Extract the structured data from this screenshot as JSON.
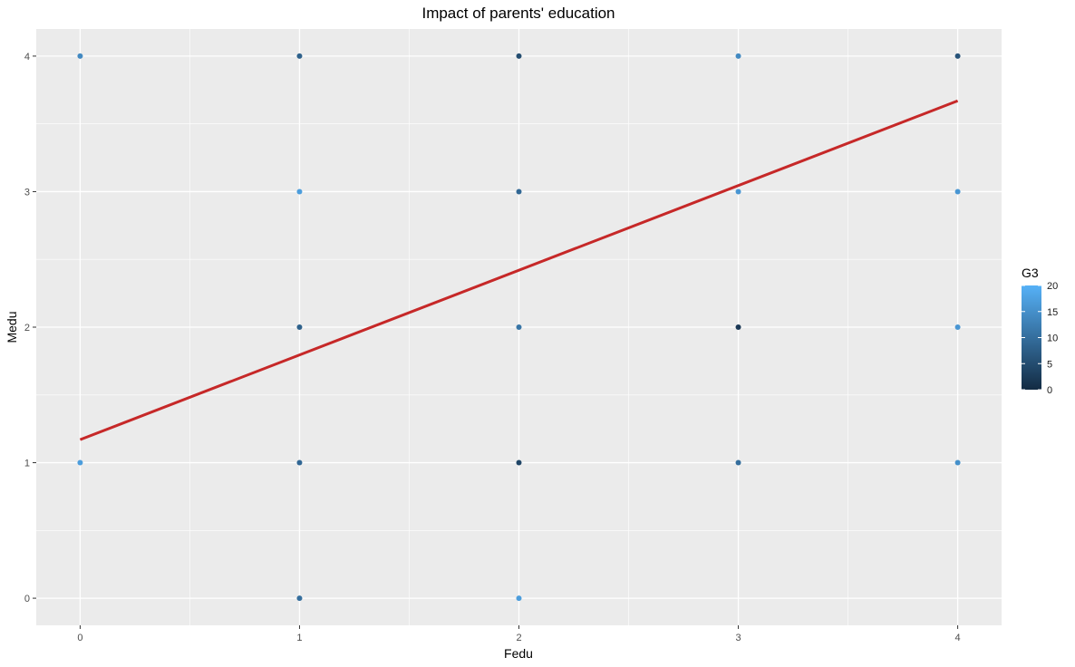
{
  "chart_data": {
    "type": "scatter",
    "title": "Impact of parents' education",
    "xlabel": "Fedu",
    "ylabel": "Medu",
    "xlim": [
      -0.2,
      4.2
    ],
    "ylim": [
      -0.2,
      4.2
    ],
    "x_ticks": [
      "0",
      "1",
      "2",
      "3",
      "4"
    ],
    "y_ticks": [
      "0",
      "1",
      "2",
      "3",
      "4"
    ],
    "grid": true,
    "color_variable": "G3",
    "color_scale": {
      "min": 0,
      "max": 20,
      "low_color": "#132B43",
      "high_color": "#56B1F7"
    },
    "legend": {
      "title": "G3",
      "position": "right",
      "labels": [
        "0",
        "5",
        "10",
        "15",
        "20"
      ]
    },
    "points": [
      {
        "x": 0,
        "y": 4,
        "g3": 14
      },
      {
        "x": 0,
        "y": 1,
        "g3": 17
      },
      {
        "x": 1,
        "y": 4,
        "g3": 8
      },
      {
        "x": 1,
        "y": 3,
        "g3": 17
      },
      {
        "x": 1,
        "y": 2,
        "g3": 8
      },
      {
        "x": 1,
        "y": 1,
        "g3": 9
      },
      {
        "x": 1,
        "y": 0,
        "g3": 10
      },
      {
        "x": 2,
        "y": 4,
        "g3": 5
      },
      {
        "x": 2,
        "y": 3,
        "g3": 9
      },
      {
        "x": 2,
        "y": 2,
        "g3": 11
      },
      {
        "x": 2,
        "y": 1,
        "g3": 4
      },
      {
        "x": 2,
        "y": 0,
        "g3": 17
      },
      {
        "x": 3,
        "y": 4,
        "g3": 14
      },
      {
        "x": 3,
        "y": 3,
        "g3": 16
      },
      {
        "x": 3,
        "y": 2,
        "g3": 2
      },
      {
        "x": 3,
        "y": 1,
        "g3": 10
      },
      {
        "x": 4,
        "y": 4,
        "g3": 6
      },
      {
        "x": 4,
        "y": 3,
        "g3": 16
      },
      {
        "x": 4,
        "y": 2,
        "g3": 16
      },
      {
        "x": 4,
        "y": 1,
        "g3": 15
      }
    ],
    "trend_line": {
      "color": "#C62828",
      "x": [
        0,
        4
      ],
      "y": [
        1.17,
        3.67
      ]
    }
  }
}
